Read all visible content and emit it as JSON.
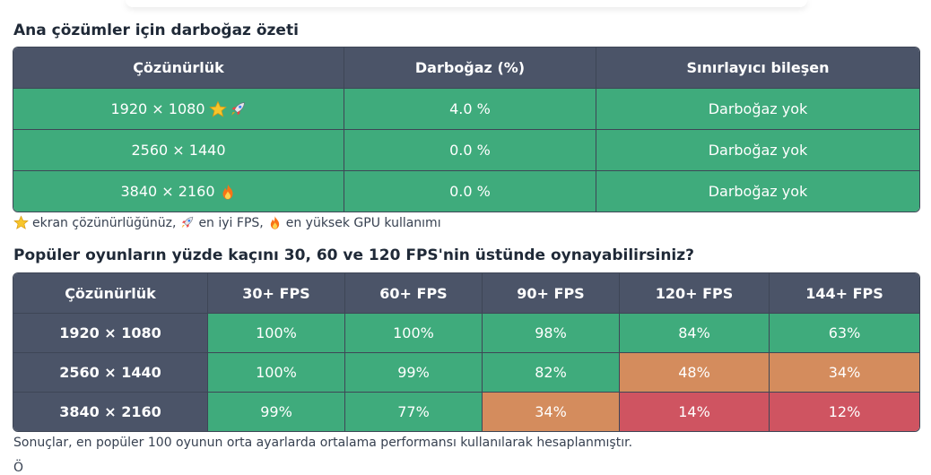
{
  "section1": {
    "title": "Ana çözümler için darboğaz özeti",
    "headers": [
      "Çözünürlük",
      "Darboğaz (%)",
      "Sınırlayıcı bileşen"
    ],
    "rows": [
      {
        "resolution": "1920 × 1080",
        "bottleneck": "4.0 %",
        "component": "Darboğaz yok",
        "icons": [
          "star-icon",
          "rocket-icon"
        ]
      },
      {
        "resolution": "2560 × 1440",
        "bottleneck": "0.0 %",
        "component": "Darboğaz yok",
        "icons": []
      },
      {
        "resolution": "3840 × 2160",
        "bottleneck": "0.0 %",
        "component": "Darboğaz yok",
        "icons": [
          "fire-icon"
        ]
      }
    ],
    "legend": {
      "star_text": "ekran çözünürlüğünüz,",
      "rocket_text": "en iyi FPS,",
      "fire_text": "en yüksek GPU kullanımı"
    }
  },
  "section2": {
    "title": "Popüler oyunların yüzde kaçını 30, 60 ve 120 FPS'nin üstünde oynayabilirsiniz?",
    "headers": [
      "Çözünürlük",
      "30+ FPS",
      "60+ FPS",
      "90+ FPS",
      "120+ FPS",
      "144+ FPS"
    ],
    "rows": [
      {
        "resolution": "1920 × 1080",
        "values": [
          "100%",
          "100%",
          "98%",
          "84%",
          "63%"
        ]
      },
      {
        "resolution": "2560 × 1440",
        "values": [
          "100%",
          "99%",
          "82%",
          "48%",
          "34%"
        ]
      },
      {
        "resolution": "3840 × 2160",
        "values": [
          "99%",
          "77%",
          "34%",
          "14%",
          "12%"
        ]
      }
    ],
    "note": "Sonuçlar, en popüler 100 oyunun orta ayarlarda ortalama performansı kullanılarak hesaplanmıştır."
  },
  "colors": {
    "header": "#4b5468",
    "green": "#3fab7c",
    "orange": "#d48c5d",
    "red": "#cf5461"
  },
  "fragment": "Ö"
}
